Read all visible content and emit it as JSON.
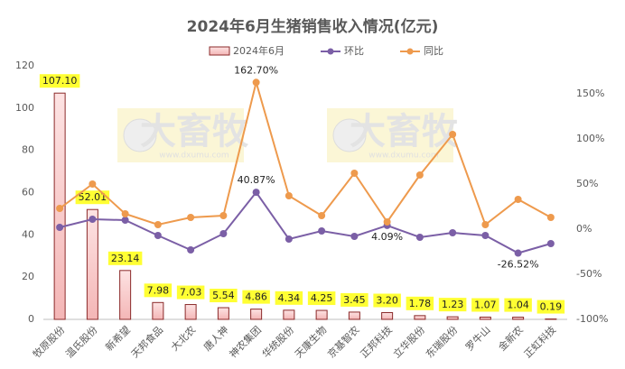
{
  "chart_data": {
    "type": "bar-line",
    "title": "2024年6月生猪销售收入情况(亿元)",
    "watermark": {
      "text": "大畜牧",
      "url": "www.dxumu.com"
    },
    "categories": [
      "牧原股份",
      "温氏股份",
      "新希望",
      "天邦食品",
      "大北农",
      "唐人神",
      "神农集团",
      "华统股份",
      "天康生物",
      "京基智农",
      "正邦科技",
      "立华股份",
      "东瑞股份",
      "罗牛山",
      "金新农",
      "正虹科技"
    ],
    "series": [
      {
        "name": "2024年6月",
        "type": "bar",
        "color": "#f4b6b6",
        "values": [
          107.1,
          52.01,
          23.14,
          7.98,
          7.03,
          5.54,
          4.86,
          4.34,
          4.25,
          3.45,
          3.2,
          1.78,
          1.23,
          1.07,
          1.04,
          0.19
        ],
        "value_labels": [
          "107.10",
          "52.01",
          "23.14",
          "7.98",
          "7.03",
          "5.54",
          "4.86",
          "4.34",
          "4.25",
          "3.45",
          "3.20",
          "1.78",
          "1.23",
          "1.07",
          "1.04",
          "0.19"
        ]
      },
      {
        "name": "环比",
        "type": "line",
        "axis": "y2",
        "color": "#7b5fa6",
        "values": [
          2,
          11,
          10,
          -7,
          -23,
          -5,
          40.87,
          -11,
          -2,
          -8,
          4.09,
          -9,
          -4,
          -7,
          -26.52,
          -16
        ],
        "value_labels": [
          null,
          null,
          null,
          null,
          null,
          null,
          "40.87%",
          null,
          null,
          null,
          "4.09%",
          null,
          null,
          null,
          "-26.52%",
          null
        ]
      },
      {
        "name": "同比",
        "type": "line",
        "axis": "y2",
        "color": "#ee9a4d",
        "values": [
          23,
          50,
          17,
          5,
          13,
          15,
          162.7,
          37,
          15,
          62,
          8,
          60,
          105,
          5,
          33,
          13
        ],
        "value_labels": [
          null,
          null,
          null,
          null,
          null,
          null,
          "162.70%",
          null,
          null,
          null,
          null,
          null,
          null,
          null,
          null,
          null
        ]
      }
    ],
    "ylim": [
      0,
      120
    ],
    "yticks": [
      0,
      20,
      40,
      60,
      80,
      100,
      120
    ],
    "y2lim": [
      -100,
      181
    ],
    "y2ticks": [
      {
        "value": -100,
        "label": "-100%"
      },
      {
        "value": -50,
        "label": "-50%"
      },
      {
        "value": 0,
        "label": "0%"
      },
      {
        "value": 50,
        "label": "50%"
      },
      {
        "value": 100,
        "label": "100%"
      },
      {
        "value": 150,
        "label": "150%"
      }
    ],
    "grid": false,
    "legend": "top"
  }
}
